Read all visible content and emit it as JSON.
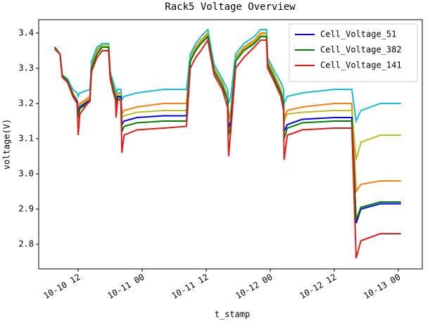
{
  "chart_data": {
    "type": "line",
    "title": "Rack5 Voltage Overview",
    "xlabel": "t_stamp",
    "ylabel": "voltage(V)",
    "x": [
      7.6,
      8.6,
      9.0,
      10.0,
      11.0,
      11.8,
      12.0,
      12.3,
      13.3,
      14.2,
      14.5,
      15.5,
      16.5,
      17.7,
      18.0,
      18.6,
      19.0,
      19.1,
      19.4,
      20.0,
      20.2,
      20.6,
      23,
      28,
      32.3,
      33,
      34,
      35,
      36.3,
      37,
      37.5,
      39,
      40,
      40.2,
      40.6,
      41.5,
      43,
      45,
      46.2,
      47.3,
      47.5,
      48.5,
      50,
      50.5,
      50.6,
      51.2,
      54,
      60,
      63.3,
      64.1,
      65,
      68.6,
      72.5
    ],
    "xlim": [
      4.6,
      76.5
    ],
    "xticks": [
      {
        "value": 12,
        "label": "10-10 12"
      },
      {
        "value": 24,
        "label": "10-11 00"
      },
      {
        "value": 36,
        "label": "10-11 12"
      },
      {
        "value": 48,
        "label": "10-12 00"
      },
      {
        "value": 60,
        "label": "10-12 12"
      },
      {
        "value": 72,
        "label": "10-13 00"
      }
    ],
    "ylim": [
      2.73,
      3.438
    ],
    "yticks": [
      {
        "value": 2.8,
        "label": "2.8"
      },
      {
        "value": 2.9,
        "label": "2.9"
      },
      {
        "value": 3.0,
        "label": "3.0"
      },
      {
        "value": 3.1,
        "label": "3.1"
      },
      {
        "value": 3.2,
        "label": "3.2"
      },
      {
        "value": 3.3,
        "label": "3.3"
      },
      {
        "value": 3.4,
        "label": "3.4"
      }
    ],
    "legend": "upper right",
    "series": [
      {
        "color": "#ff7f0e",
        "values": [
          3.36,
          3.34,
          3.28,
          3.27,
          3.23,
          3.21,
          3.19,
          3.2,
          3.21,
          3.22,
          3.31,
          3.35,
          3.37,
          3.37,
          3.29,
          3.25,
          3.23,
          3.21,
          3.23,
          3.23,
          3.17,
          3.18,
          3.19,
          3.2,
          3.2,
          3.33,
          3.36,
          3.38,
          3.4,
          3.34,
          3.3,
          3.26,
          3.22,
          3.16,
          3.18,
          3.33,
          3.36,
          3.38,
          3.4,
          3.4,
          3.32,
          3.29,
          3.24,
          3.21,
          3.16,
          3.18,
          3.19,
          3.2,
          3.2,
          2.95,
          2.97,
          2.98,
          2.98
        ]
      },
      {
        "color": "#17becf",
        "values": [
          3.36,
          3.34,
          3.28,
          3.27,
          3.24,
          3.23,
          3.22,
          3.23,
          3.235,
          3.24,
          3.32,
          3.36,
          3.37,
          3.37,
          3.29,
          3.26,
          3.24,
          3.23,
          3.24,
          3.24,
          3.21,
          3.22,
          3.23,
          3.24,
          3.24,
          3.34,
          3.37,
          3.39,
          3.41,
          3.35,
          3.31,
          3.27,
          3.24,
          3.2,
          3.22,
          3.34,
          3.37,
          3.39,
          3.41,
          3.41,
          3.33,
          3.3,
          3.26,
          3.24,
          3.2,
          3.22,
          3.23,
          3.24,
          3.24,
          3.15,
          3.18,
          3.2,
          3.2
        ]
      },
      {
        "color": "#bcbd22",
        "values": [
          3.36,
          3.34,
          3.28,
          3.265,
          3.225,
          3.205,
          3.18,
          3.195,
          3.205,
          3.215,
          3.305,
          3.345,
          3.365,
          3.365,
          3.285,
          3.245,
          3.225,
          3.205,
          3.225,
          3.225,
          3.16,
          3.165,
          3.175,
          3.18,
          3.18,
          3.325,
          3.355,
          3.375,
          3.395,
          3.335,
          3.295,
          3.255,
          3.215,
          3.15,
          3.17,
          3.325,
          3.355,
          3.375,
          3.395,
          3.395,
          3.315,
          3.285,
          3.235,
          3.205,
          3.15,
          3.17,
          3.175,
          3.18,
          3.18,
          3.04,
          3.09,
          3.11,
          3.11
        ]
      },
      {
        "name": "Cell_Voltage_51",
        "color": "#0000ff",
        "values": [
          3.36,
          3.34,
          3.28,
          3.265,
          3.225,
          3.205,
          3.17,
          3.19,
          3.2,
          3.21,
          3.3,
          3.34,
          3.36,
          3.36,
          3.28,
          3.24,
          3.22,
          3.2,
          3.22,
          3.22,
          3.14,
          3.15,
          3.16,
          3.165,
          3.165,
          3.32,
          3.35,
          3.37,
          3.39,
          3.33,
          3.29,
          3.25,
          3.21,
          3.13,
          3.15,
          3.32,
          3.35,
          3.37,
          3.39,
          3.39,
          3.31,
          3.28,
          3.23,
          3.2,
          3.12,
          3.14,
          3.155,
          3.16,
          3.16,
          2.86,
          2.9,
          2.915,
          2.915
        ]
      },
      {
        "name": "Cell_Voltage_382",
        "color": "#008000",
        "values": [
          3.36,
          3.34,
          3.28,
          3.265,
          3.225,
          3.2,
          3.16,
          3.185,
          3.195,
          3.205,
          3.3,
          3.34,
          3.36,
          3.36,
          3.28,
          3.24,
          3.22,
          3.19,
          3.215,
          3.215,
          3.12,
          3.135,
          3.145,
          3.15,
          3.15,
          3.32,
          3.35,
          3.37,
          3.39,
          3.33,
          3.29,
          3.25,
          3.21,
          3.11,
          3.135,
          3.32,
          3.35,
          3.37,
          3.39,
          3.39,
          3.31,
          3.28,
          3.23,
          3.2,
          3.1,
          3.13,
          3.145,
          3.15,
          3.15,
          2.87,
          2.905,
          2.92,
          2.92
        ]
      },
      {
        "name": "Cell_Voltage_141",
        "color": "#e31a1c",
        "values": [
          3.355,
          3.34,
          3.275,
          3.26,
          3.22,
          3.2,
          3.11,
          3.17,
          3.19,
          3.21,
          3.29,
          3.33,
          3.35,
          3.35,
          3.27,
          3.23,
          3.21,
          3.16,
          3.21,
          3.21,
          3.06,
          3.11,
          3.125,
          3.13,
          3.135,
          3.3,
          3.33,
          3.35,
          3.38,
          3.32,
          3.28,
          3.24,
          3.19,
          3.05,
          3.12,
          3.3,
          3.33,
          3.36,
          3.38,
          3.38,
          3.3,
          3.27,
          3.22,
          3.18,
          3.04,
          3.11,
          3.125,
          3.13,
          3.13,
          2.76,
          2.81,
          2.83,
          2.83
        ]
      }
    ]
  }
}
